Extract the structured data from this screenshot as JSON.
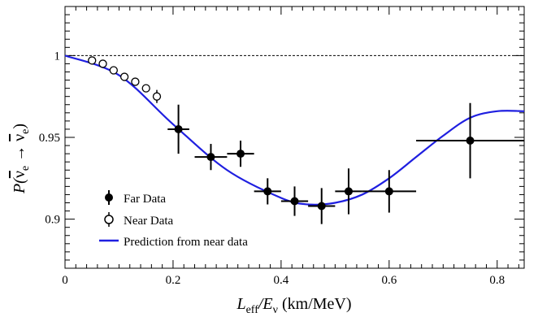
{
  "chart_data": {
    "type": "scatter",
    "xlim": [
      0,
      0.85
    ],
    "ylim": [
      0.87,
      1.03
    ],
    "x_ticks": [
      0,
      0.2,
      0.4,
      0.6,
      0.8
    ],
    "x_tick_labels": [
      "0",
      "0.2",
      "0.4",
      "0.6",
      "0.8"
    ],
    "y_ticks": [
      0.9,
      0.95,
      1.0
    ],
    "y_tick_labels": [
      "0.9",
      "0.95",
      "1"
    ],
    "xlabel": {
      "base": "L",
      "sub1": "eff",
      "slash": "/E",
      "sub2": "ν",
      "unit": " (km/MeV)"
    },
    "ylabel": {
      "p": "P(",
      "nu": "ν",
      "sub": "e",
      "arrow": " → ",
      "close": ")"
    },
    "reference_line": {
      "y": 1.0,
      "style": "dashed"
    },
    "legend_position": "bottom-left",
    "series": [
      {
        "name": "Far Data",
        "marker": "filled-circle",
        "points": [
          {
            "x": 0.21,
            "y": 0.955,
            "xerr": 0.02,
            "yerr": 0.015
          },
          {
            "x": 0.27,
            "y": 0.938,
            "xerr": 0.03,
            "yerr": 0.008
          },
          {
            "x": 0.325,
            "y": 0.94,
            "xerr": 0.025,
            "yerr": 0.008
          },
          {
            "x": 0.375,
            "y": 0.917,
            "xerr": 0.025,
            "yerr": 0.008
          },
          {
            "x": 0.425,
            "y": 0.911,
            "xerr": 0.025,
            "yerr": 0.009
          },
          {
            "x": 0.475,
            "y": 0.908,
            "xerr": 0.025,
            "yerr": 0.011
          },
          {
            "x": 0.525,
            "y": 0.917,
            "xerr": 0.025,
            "yerr": 0.014
          },
          {
            "x": 0.6,
            "y": 0.917,
            "xerr": 0.05,
            "yerr": 0.013
          },
          {
            "x": 0.75,
            "y": 0.948,
            "xerr": 0.1,
            "yerr": 0.023
          }
        ]
      },
      {
        "name": "Near Data",
        "marker": "open-circle",
        "points": [
          {
            "x": 0.05,
            "y": 0.997,
            "xerr": 0,
            "yerr": 0.001
          },
          {
            "x": 0.07,
            "y": 0.995,
            "xerr": 0,
            "yerr": 0.001
          },
          {
            "x": 0.09,
            "y": 0.991,
            "xerr": 0,
            "yerr": 0.001
          },
          {
            "x": 0.11,
            "y": 0.987,
            "xerr": 0,
            "yerr": 0.002
          },
          {
            "x": 0.13,
            "y": 0.984,
            "xerr": 0,
            "yerr": 0.002
          },
          {
            "x": 0.15,
            "y": 0.98,
            "xerr": 0,
            "yerr": 0.002
          },
          {
            "x": 0.17,
            "y": 0.975,
            "xerr": 0,
            "yerr": 0.004
          }
        ]
      },
      {
        "name": "Prediction from near data",
        "type": "line",
        "color": "#1f1fe0",
        "x": [
          0,
          0.1,
          0.2,
          0.3,
          0.4,
          0.45,
          0.5,
          0.55,
          0.6,
          0.65,
          0.7,
          0.75,
          0.8,
          0.85
        ],
        "y": [
          1.0,
          0.988,
          0.958,
          0.93,
          0.913,
          0.909,
          0.91,
          0.915,
          0.925,
          0.938,
          0.951,
          0.962,
          0.966,
          0.966
        ]
      }
    ]
  }
}
